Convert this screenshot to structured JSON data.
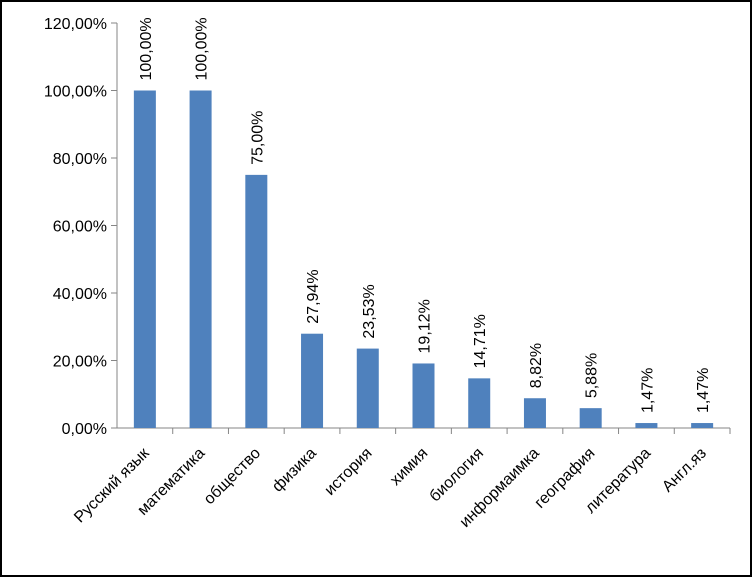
{
  "chart_data": {
    "type": "bar",
    "title": "",
    "xlabel": "",
    "ylabel": "",
    "categories": [
      "Русский язык",
      "математика",
      "общество",
      "физика",
      "история",
      "химия",
      "биология",
      "информаимка",
      "география",
      "литература",
      "Англ.яз"
    ],
    "values": [
      100.0,
      100.0,
      75.0,
      27.94,
      23.53,
      19.12,
      14.71,
      8.82,
      5.88,
      1.47,
      1.47
    ],
    "data_labels": [
      "100,00%",
      "100,00%",
      "75,00%",
      "27,94%",
      "23,53%",
      "19,12%",
      "14,71%",
      "8,82%",
      "5,88%",
      "1,47%",
      "1,47%"
    ],
    "y_ticks": [
      "0,00%",
      "20,00%",
      "40,00%",
      "60,00%",
      "80,00%",
      "100,00%",
      "120,00%"
    ],
    "ylim": [
      0,
      120
    ],
    "grid": false,
    "legend": "none",
    "bar_color": "#4f81bd",
    "frame_color": "#000000"
  }
}
